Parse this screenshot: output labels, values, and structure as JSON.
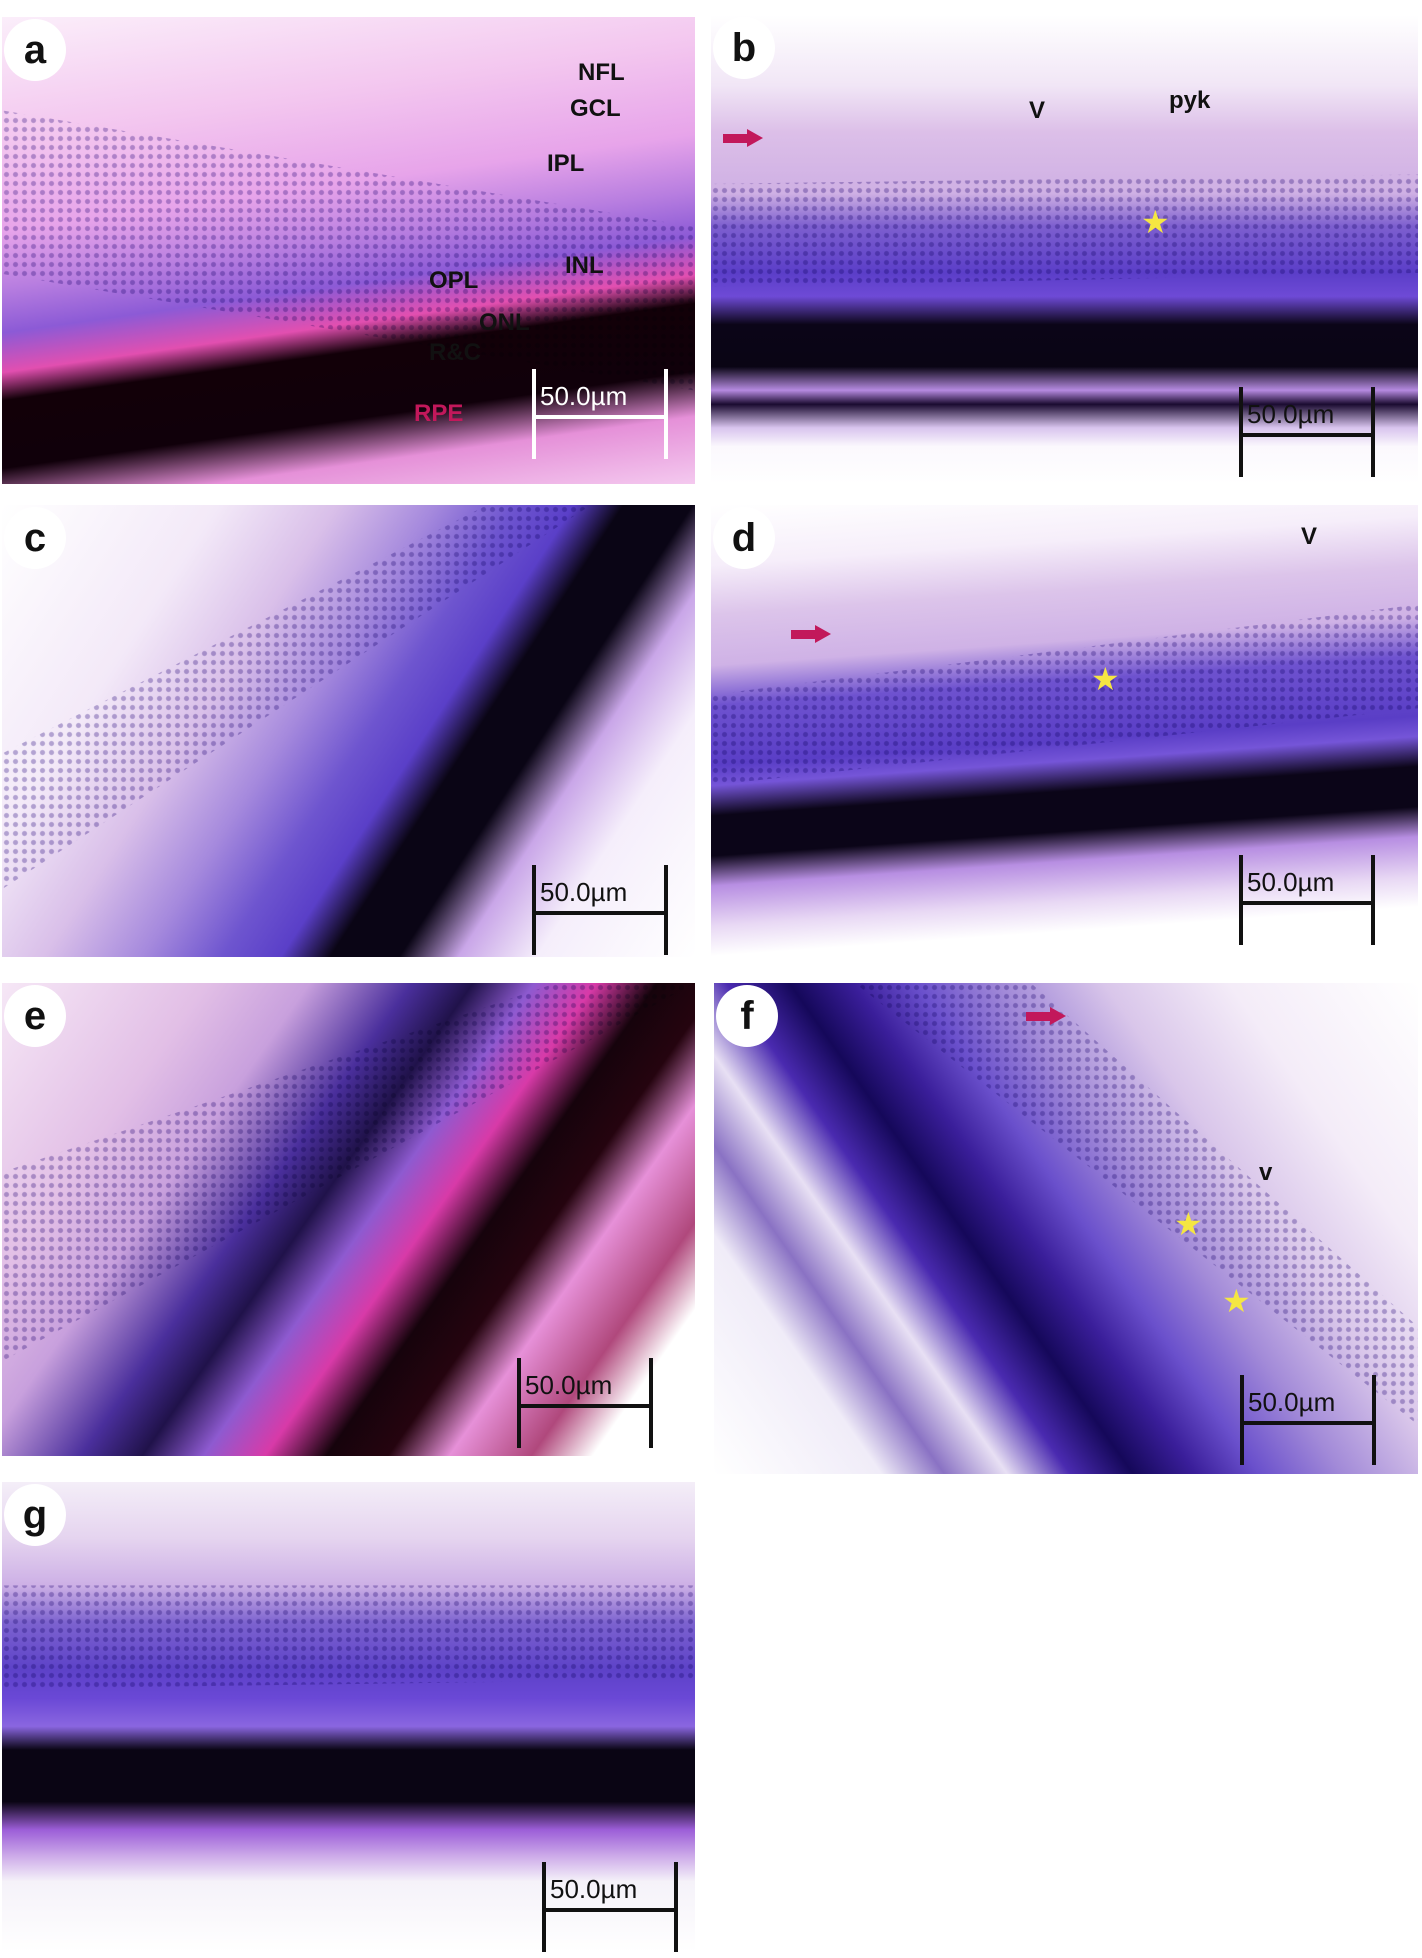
{
  "panels": [
    {
      "id": "a",
      "labels": [
        "NFL",
        "GCL",
        "IPL",
        "INL",
        "OPL",
        "ONL",
        "R&C",
        "RPE"
      ],
      "scale_bar": "50.0µm"
    },
    {
      "id": "b",
      "labels": [
        "V",
        "pyk"
      ],
      "scale_bar": "50.0µm",
      "markers": [
        "arrow",
        "star"
      ]
    },
    {
      "id": "c",
      "labels": [],
      "scale_bar": "50.0µm"
    },
    {
      "id": "d",
      "labels": [
        "V"
      ],
      "scale_bar": "50.0µm",
      "markers": [
        "arrow",
        "star"
      ]
    },
    {
      "id": "e",
      "labels": [],
      "scale_bar": "50.0µm"
    },
    {
      "id": "f",
      "labels": [
        "v"
      ],
      "scale_bar": "50.0µm",
      "markers": [
        "arrow",
        "star",
        "star"
      ]
    },
    {
      "id": "g",
      "labels": [],
      "scale_bar": "50.0µm"
    }
  ],
  "colors": {
    "arrow": "#c2185b",
    "star": "#f5e642",
    "rpe_label": "#c2185b"
  }
}
